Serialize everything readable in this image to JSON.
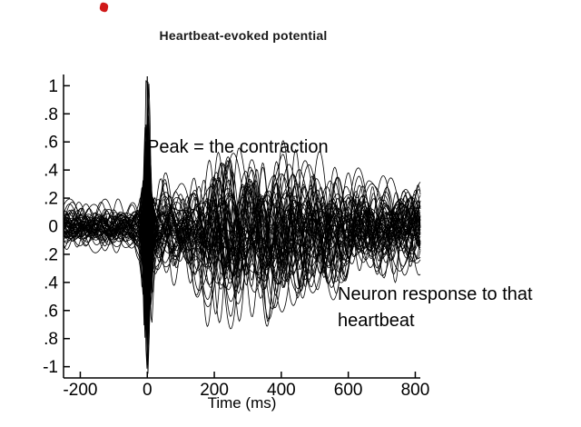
{
  "page": {
    "background": "#ffffff",
    "marker_color": "#d01818"
  },
  "chart_data": {
    "type": "line",
    "title": "Heartbeat-evoked potential",
    "xlabel": "Time (ms)",
    "ylabel": "",
    "xlim": [
      -250,
      815
    ],
    "ylim": [
      -1.08,
      1.08
    ],
    "grid": false,
    "legend": "none",
    "line_color": "#000000",
    "n_traces": 55,
    "seed": 7,
    "x_ticks": [
      {
        "v": -200,
        "label": "-200"
      },
      {
        "v": 0,
        "label": "0"
      },
      {
        "v": 200,
        "label": "200"
      },
      {
        "v": 400,
        "label": "400"
      },
      {
        "v": 600,
        "label": "600"
      },
      {
        "v": 800,
        "label": "800"
      }
    ],
    "y_ticks": [
      {
        "v": 1,
        "label": "1"
      },
      {
        "v": 0.8,
        "label": ".8"
      },
      {
        "v": 0.6,
        "label": ".6"
      },
      {
        "v": 0.4,
        "label": ".4"
      },
      {
        "v": 0.2,
        "label": ".2"
      },
      {
        "v": 0,
        "label": "0"
      },
      {
        "v": -0.2,
        "label": ".2"
      },
      {
        "v": -0.4,
        "label": ".4"
      },
      {
        "v": -0.6,
        "label": ".6"
      },
      {
        "v": -0.8,
        "label": ".8"
      },
      {
        "v": -1,
        "label": "-1"
      }
    ],
    "event_line_x": 0,
    "envelope": [
      [
        -250,
        0.13
      ],
      [
        -60,
        0.12
      ],
      [
        -25,
        0.17
      ],
      [
        0,
        0.32
      ],
      [
        40,
        0.28
      ],
      [
        90,
        0.22
      ],
      [
        150,
        0.34
      ],
      [
        230,
        0.5
      ],
      [
        320,
        0.46
      ],
      [
        420,
        0.42
      ],
      [
        520,
        0.38
      ],
      [
        620,
        0.3
      ],
      [
        720,
        0.27
      ],
      [
        815,
        0.27
      ]
    ],
    "spike": {
      "center_ms": 0,
      "sigma_ms": 13,
      "period_ms": 26,
      "amp_min": 0.25,
      "amp_max": 1.0
    },
    "annotations": [
      {
        "text": "Peak = the contraction"
      },
      {
        "text": "Neuron response to that heartbeat"
      }
    ]
  }
}
